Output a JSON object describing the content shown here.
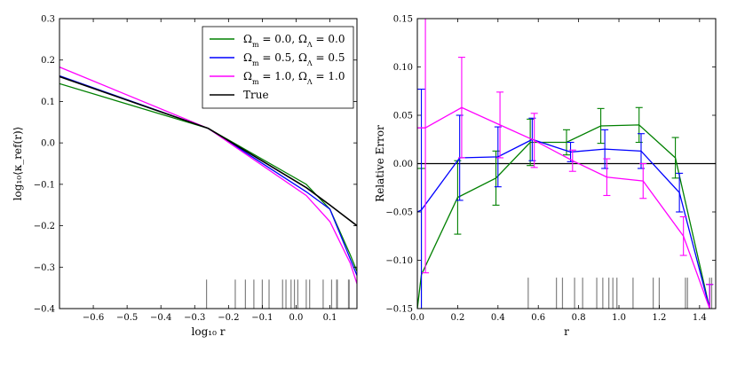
{
  "chart_data": [
    {
      "type": "line",
      "xlabel": "log₁₀ r",
      "ylabel": "log₁₀⟨κ_ref(r)⟩",
      "xlim": [
        -0.7,
        0.18
      ],
      "ylim": [
        -0.4,
        0.3
      ],
      "xticks": [
        -0.6,
        -0.5,
        -0.4,
        -0.3,
        -0.2,
        -0.1,
        0.0,
        0.1
      ],
      "xtick_labels": [
        "−0.6",
        "−0.5",
        "−0.4",
        "−0.3",
        "−0.2",
        "−0.1",
        "0.0",
        "0.1"
      ],
      "yticks": [
        -0.4,
        -0.3,
        -0.2,
        -0.1,
        0.0,
        0.1,
        0.2,
        0.3
      ],
      "ytick_labels": [
        "−0.4",
        "−0.3",
        "−0.2",
        "−0.1",
        "0.0",
        "0.1",
        "0.2",
        "0.3"
      ],
      "legend_position": "top-right",
      "series": [
        {
          "name": "Ωm = 0.0, ΩΛ = 0.0",
          "label_main": "Ω",
          "label_sub1": "m",
          "label_mid": " = 0.0,  Ω",
          "label_sub2": "Λ",
          "label_end": " = 0.0",
          "color": "#008000",
          "x": [
            -0.7,
            -0.26,
            0.03,
            0.1,
            0.16,
            0.18
          ],
          "y": [
            0.143,
            0.035,
            -0.1,
            -0.16,
            -0.27,
            -0.31
          ]
        },
        {
          "name": "Ωm = 0.5, ΩΛ = 0.5",
          "label_main": "Ω",
          "label_sub1": "m",
          "label_mid": " = 0.5,  Ω",
          "label_sub2": "Λ",
          "label_end": " = 0.5",
          "color": "#0000ff",
          "x": [
            -0.7,
            -0.26,
            0.03,
            0.1,
            0.16,
            0.18
          ],
          "y": [
            0.162,
            0.035,
            -0.118,
            -0.16,
            -0.28,
            -0.32
          ]
        },
        {
          "name": "Ωm = 1.0, ΩΛ = 1.0",
          "label_main": "Ω",
          "label_sub1": "m",
          "label_mid": " = 1.0,  Ω",
          "label_sub2": "Λ",
          "label_end": " = 1.0",
          "color": "#ff00ff",
          "x": [
            -0.7,
            -0.26,
            0.03,
            0.1,
            0.16,
            0.18
          ],
          "y": [
            0.183,
            0.035,
            -0.127,
            -0.19,
            -0.29,
            -0.34
          ]
        },
        {
          "name": "True",
          "label_main": "True",
          "label_sub1": "",
          "label_mid": "",
          "label_sub2": "",
          "label_end": "",
          "color": "#000000",
          "x": [
            -0.7,
            -0.26,
            0.03,
            0.1,
            0.18
          ],
          "y": [
            0.16,
            0.035,
            -0.108,
            -0.15,
            -0.2
          ]
        }
      ],
      "rug": {
        "color": "#808080",
        "y_range": [
          -0.4,
          -0.33
        ],
        "x": [
          -0.265,
          -0.18,
          -0.15,
          -0.125,
          -0.1,
          -0.08,
          -0.04,
          -0.03,
          -0.015,
          -0.005,
          0.005,
          0.03,
          0.04,
          0.08,
          0.105,
          0.12,
          0.122,
          0.155,
          0.157
        ]
      }
    },
    {
      "type": "line",
      "xlabel": "r",
      "ylabel": "Relative Error",
      "xlim": [
        0.0,
        1.48
      ],
      "ylim": [
        -0.15,
        0.15
      ],
      "xticks": [
        0.0,
        0.2,
        0.4,
        0.6,
        0.8,
        1.0,
        1.2,
        1.4
      ],
      "xtick_labels": [
        "0.0",
        "0.2",
        "0.4",
        "0.6",
        "0.8",
        "1.0",
        "1.2",
        "1.4"
      ],
      "yticks": [
        -0.15,
        -0.1,
        -0.05,
        0.0,
        0.05,
        0.1,
        0.15
      ],
      "ytick_labels": [
        "−0.15",
        "−0.10",
        "−0.05",
        "0.00",
        "0.05",
        "0.10",
        "0.15"
      ],
      "zero_line": 0.0,
      "series": [
        {
          "name": "Ωm = 0.0, ΩΛ = 0.0",
          "color": "#008000",
          "x": [
            0.0,
            0.02,
            0.2,
            0.39,
            0.56,
            0.74,
            0.91,
            1.1,
            1.28,
            1.45
          ],
          "y": [
            -0.15,
            -0.115,
            -0.035,
            -0.015,
            0.022,
            0.022,
            0.039,
            0.04,
            0.006,
            -0.15
          ],
          "err": [
            0,
            0.11,
            0.038,
            0.028,
            0.024,
            0.013,
            0.018,
            0.018,
            0.021,
            0.025
          ]
        },
        {
          "name": "Ωm = 0.5, ΩΛ = 0.5",
          "color": "#0000ff",
          "x": [
            0.0,
            0.02,
            0.21,
            0.4,
            0.57,
            0.76,
            0.93,
            1.11,
            1.3,
            1.45
          ],
          "y": [
            -0.05,
            -0.048,
            0.006,
            0.007,
            0.025,
            0.012,
            0.015,
            0.013,
            -0.03,
            -0.15
          ],
          "err": [
            0,
            0.125,
            0.044,
            0.031,
            0.022,
            0.01,
            0.02,
            0.018,
            0.02,
            0.025
          ]
        },
        {
          "name": "Ωm = 1.0, ΩΛ = 1.0",
          "color": "#ff00ff",
          "x": [
            0.0,
            0.04,
            0.22,
            0.41,
            0.58,
            0.77,
            0.94,
            1.12,
            1.32,
            1.45
          ],
          "y": [
            0.037,
            0.037,
            0.058,
            0.04,
            0.024,
            0.003,
            -0.014,
            -0.018,
            -0.075,
            -0.15
          ],
          "err": [
            0,
            0.15,
            0.052,
            0.034,
            0.028,
            0.011,
            0.019,
            0.018,
            0.02,
            0.025
          ]
        }
      ],
      "rug": {
        "color": "#808080",
        "y_range": [
          -0.15,
          -0.118
        ],
        "x": [
          0.55,
          0.69,
          0.72,
          0.78,
          0.82,
          0.89,
          0.92,
          0.95,
          0.97,
          0.99,
          1.07,
          1.17,
          1.2,
          1.33,
          1.34,
          1.45,
          1.46
        ]
      }
    }
  ]
}
